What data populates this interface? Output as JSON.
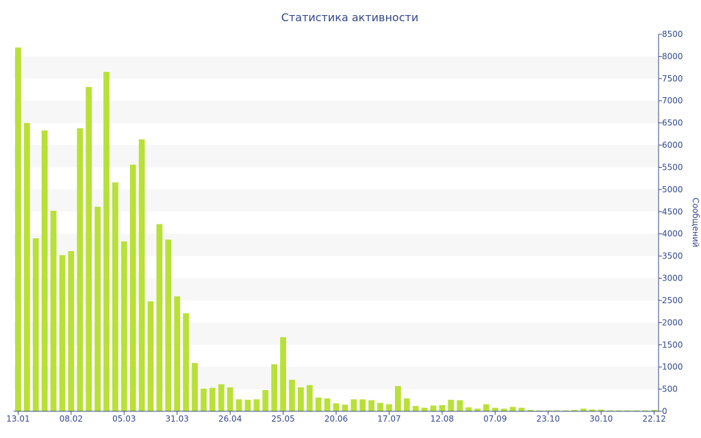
{
  "chart_data": {
    "type": "bar",
    "title": "Статистика активности",
    "xlabel": "",
    "ylabel": "Сообщений",
    "ylim": [
      0,
      8500
    ],
    "y_axis_side": "right",
    "y_ticks": [
      0,
      500,
      1000,
      1500,
      2000,
      2500,
      3000,
      3500,
      4000,
      4500,
      5000,
      5500,
      6000,
      6500,
      7000,
      7500,
      8000,
      8500
    ],
    "x_tick_labels": [
      "13.01",
      "08.02",
      "05.03",
      "31.03",
      "26.04",
      "25.05",
      "20.06",
      "17.07",
      "12.08",
      "07.09",
      "23.10",
      "30.10",
      "22.12"
    ],
    "x_tick_indices": [
      0,
      6,
      12,
      18,
      24,
      30,
      36,
      42,
      48,
      54,
      60,
      66,
      72
    ],
    "grid": "alternating horizontal bands",
    "bar_color": "#b9e038",
    "band_color": "#f7f7f7",
    "text_color": "#33478a",
    "values": [
      8200,
      6500,
      3900,
      6330,
      4520,
      3520,
      3610,
      6380,
      7310,
      4610,
      7650,
      5160,
      3830,
      5560,
      6130,
      2480,
      4220,
      3870,
      2590,
      2210,
      1090,
      510,
      530,
      610,
      540,
      270,
      260,
      270,
      480,
      1060,
      1670,
      710,
      540,
      590,
      310,
      290,
      180,
      150,
      270,
      270,
      250,
      190,
      160,
      570,
      290,
      120,
      80,
      130,
      140,
      260,
      250,
      90,
      60,
      160,
      80,
      60,
      100,
      80,
      30,
      20,
      20,
      20,
      20,
      30,
      60,
      40,
      40,
      20,
      20,
      20,
      20,
      20,
      30
    ]
  }
}
